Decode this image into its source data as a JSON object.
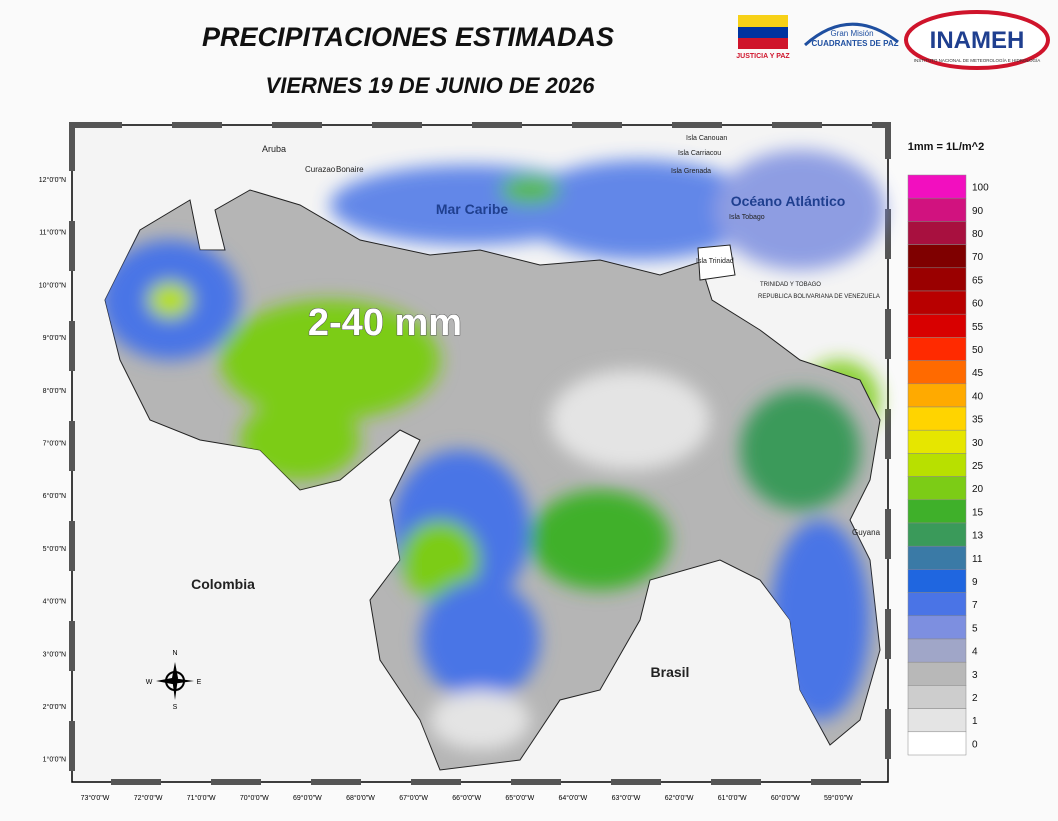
{
  "header": {
    "title": "PRECIPITACIONES ESTIMADAS",
    "subtitle": "VIERNES 19 DE JUNIO DE 2026"
  },
  "logos": {
    "ministry": "JUSTICIA Y PAZ",
    "mission_top": "Gran Misión",
    "mission_main": "CUADRANTES DE PAZ",
    "institute": "INAMEH",
    "institute_full": "INSTITUTO NACIONAL DE METEOROLOGÍA E HIDROLOGÍA"
  },
  "map": {
    "range_label": "2-40 mm",
    "places": [
      "Aruba",
      "Curazao",
      "Bonaire",
      "Mar Caribe",
      "Océano Atlántico",
      "Isla Canouan",
      "Isla Carriacou",
      "Isla Grenada",
      "Isla Tobago",
      "Isla Trinidad",
      "TRINIDAD Y TOBAGO",
      "REPUBLICA BOLIVARIANA DE VENEZUELA",
      "Colombia",
      "Brasil",
      "Guyana"
    ],
    "compass": [
      "N",
      "S",
      "E",
      "W"
    ],
    "lat_labels": [
      "12°0'0\"N",
      "11°0'0\"N",
      "10°0'0\"N",
      "9°0'0\"N",
      "8°0'0\"N",
      "7°0'0\"N",
      "6°0'0\"N",
      "5°0'0\"N",
      "4°0'0\"N",
      "3°0'0\"N",
      "2°0'0\"N",
      "1°0'0\"N"
    ],
    "lon_labels": [
      "73°0'0\"W",
      "72°0'0\"W",
      "71°0'0\"W",
      "70°0'0\"W",
      "69°0'0\"W",
      "68°0'0\"W",
      "67°0'0\"W",
      "66°0'0\"W",
      "65°0'0\"W",
      "64°0'0\"W",
      "63°0'0\"W",
      "62°0'0\"W",
      "61°0'0\"W",
      "60°0'0\"W",
      "59°0'0\"W"
    ]
  },
  "legend": {
    "title": "1mm = 1L/m^2",
    "items": [
      {
        "value": 100,
        "color": "#f20fbf"
      },
      {
        "value": 90,
        "color": "#d1127f"
      },
      {
        "value": 80,
        "color": "#a8103f"
      },
      {
        "value": 70,
        "color": "#7f0000"
      },
      {
        "value": 65,
        "color": "#9a0000"
      },
      {
        "value": 60,
        "color": "#b80000"
      },
      {
        "value": 55,
        "color": "#d80000"
      },
      {
        "value": 50,
        "color": "#ff2a00"
      },
      {
        "value": 45,
        "color": "#ff6a00"
      },
      {
        "value": 40,
        "color": "#ffaa00"
      },
      {
        "value": 35,
        "color": "#ffd400"
      },
      {
        "value": 30,
        "color": "#e6e600"
      },
      {
        "value": 25,
        "color": "#b8e000"
      },
      {
        "value": 20,
        "color": "#7ccc16"
      },
      {
        "value": 15,
        "color": "#3fb02a"
      },
      {
        "value": 13,
        "color": "#3a9a5a"
      },
      {
        "value": 11,
        "color": "#3a7aa6"
      },
      {
        "value": 9,
        "color": "#1f66e0"
      },
      {
        "value": 7,
        "color": "#4a74e6"
      },
      {
        "value": 5,
        "color": "#7d8fe0"
      },
      {
        "value": 4,
        "color": "#a0a6c8"
      },
      {
        "value": 3,
        "color": "#b8b8b8"
      },
      {
        "value": 2,
        "color": "#cdcdcd"
      },
      {
        "value": 1,
        "color": "#e4e4e4"
      },
      {
        "value": 0,
        "color": "#ffffff"
      }
    ]
  }
}
